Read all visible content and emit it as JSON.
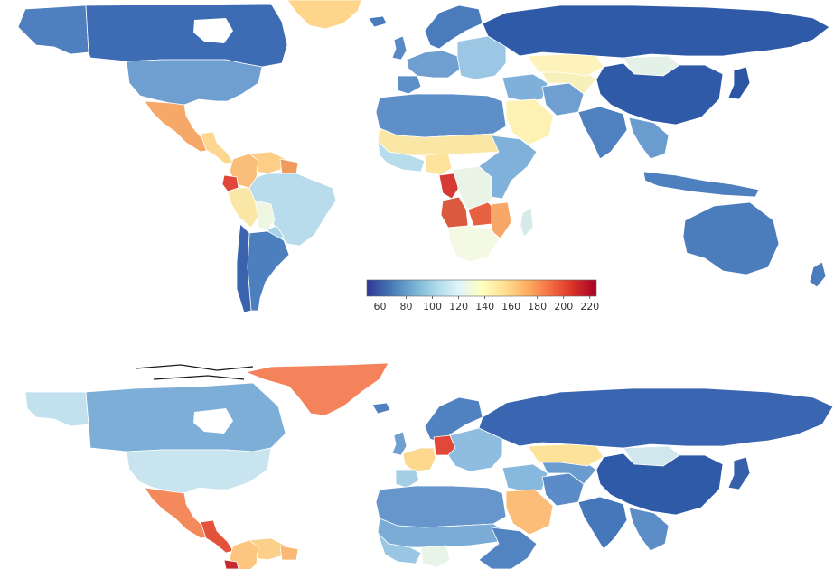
{
  "panels": [
    {
      "letter": "",
      "regions": {
        "alaska": "#4f7fbf",
        "canada": "#3d6cb5",
        "greenland": "#fed58a",
        "usa": "#6f9fd0",
        "mexico": "#f6a868",
        "central_america": "#fdd690",
        "colombia": "#f9be79",
        "venezuela": "#fdcf86",
        "ecuador": "#e1483a",
        "guianas": "#f09a5c",
        "peru": "#fbe7a5",
        "brazil": "#b9dcec",
        "bolivia": "#eef6e1",
        "paraguay": "#a8d3e8",
        "argentina": "#4d7fbe",
        "chile": "#3a63ad",
        "uk": "#5a8ac6",
        "scandinavia": "#4a7cbd",
        "western_europe": "#6e9fd0",
        "iberia": "#5d8fc9",
        "eastern_europe": "#9cc7e4",
        "russia": "#2f5aa8",
        "north_africa": "#5f8fc9",
        "sahel": "#fbe7a5",
        "west_africa": "#b7dcec",
        "nigeria": "#fee39b",
        "gabon_congo": "#d73a35",
        "drc": "#e9f4e6",
        "angola": "#d95a3e",
        "zambia": "#e7603f",
        "mozambique": "#f7a767",
        "east_africa": "#7fb1da",
        "southern_africa": "#f4f9e4",
        "madagascar": "#d5ebe9",
        "arabia": "#fdf2b3",
        "middle_east": "#7eb0da",
        "iran": "#6e9fd0",
        "central_asia": "#f8f0ba",
        "kazakhstan": "#fef4bb",
        "mongolia": "#e3f1e8",
        "china": "#2f5aa8",
        "india": "#4f80c0",
        "southeast_asia": "#6b9cd0",
        "indonesia": "#4e7fbf",
        "japan": "#2c55a3",
        "australia": "#4b7dbd",
        "new_zealand": "#4b7dbd"
      }
    },
    {
      "letter": "",
      "regions": {
        "alaska": "#c2e1ee",
        "canada": "#7daed8",
        "greenland": "#f4825a",
        "usa": "#c8e4ef",
        "mexico": "#f4895c",
        "central_america": "#e3533b",
        "colombia": "#fdc57f",
        "venezuela": "#fbd089",
        "ecuador": "#c62a2d",
        "guianas": "#f9b873",
        "uk": "#6e9fd0",
        "scandinavia": "#5081c0",
        "western_europe": "#fdd88f",
        "germany": "#e2483a",
        "iberia": "#a6cfe6",
        "eastern_europe": "#8fbde0",
        "russia": "#3a66b1",
        "north_africa": "#6796cc",
        "sahel": "#7aacd6",
        "west_africa": "#9ac6e3",
        "nigeria": "#e8f4e8",
        "arabia": "#fbbd78",
        "middle_east": "#87b8dd",
        "iran": "#5b8cc7",
        "central_asia": "#6b9cd0",
        "kazakhstan": "#fde39a",
        "mongolia": "#cfe7ed",
        "china": "#2f5aa8",
        "india": "#4677ba",
        "southeast_asia": "#5c8dc7",
        "japan": "#3760aa",
        "east_africa": "#5284c2"
      }
    }
  ],
  "legend": {
    "stops": [
      "#313695",
      "#4575b4",
      "#74add1",
      "#abd9e9",
      "#e0f3f8",
      "#ffffbf",
      "#fee090",
      "#fdae61",
      "#f46d43",
      "#d73027",
      "#a50026"
    ],
    "ticks": [
      "60",
      "80",
      "100",
      "120",
      "140",
      "160",
      "180",
      "200",
      "220"
    ],
    "min": 50,
    "max": 225
  }
}
